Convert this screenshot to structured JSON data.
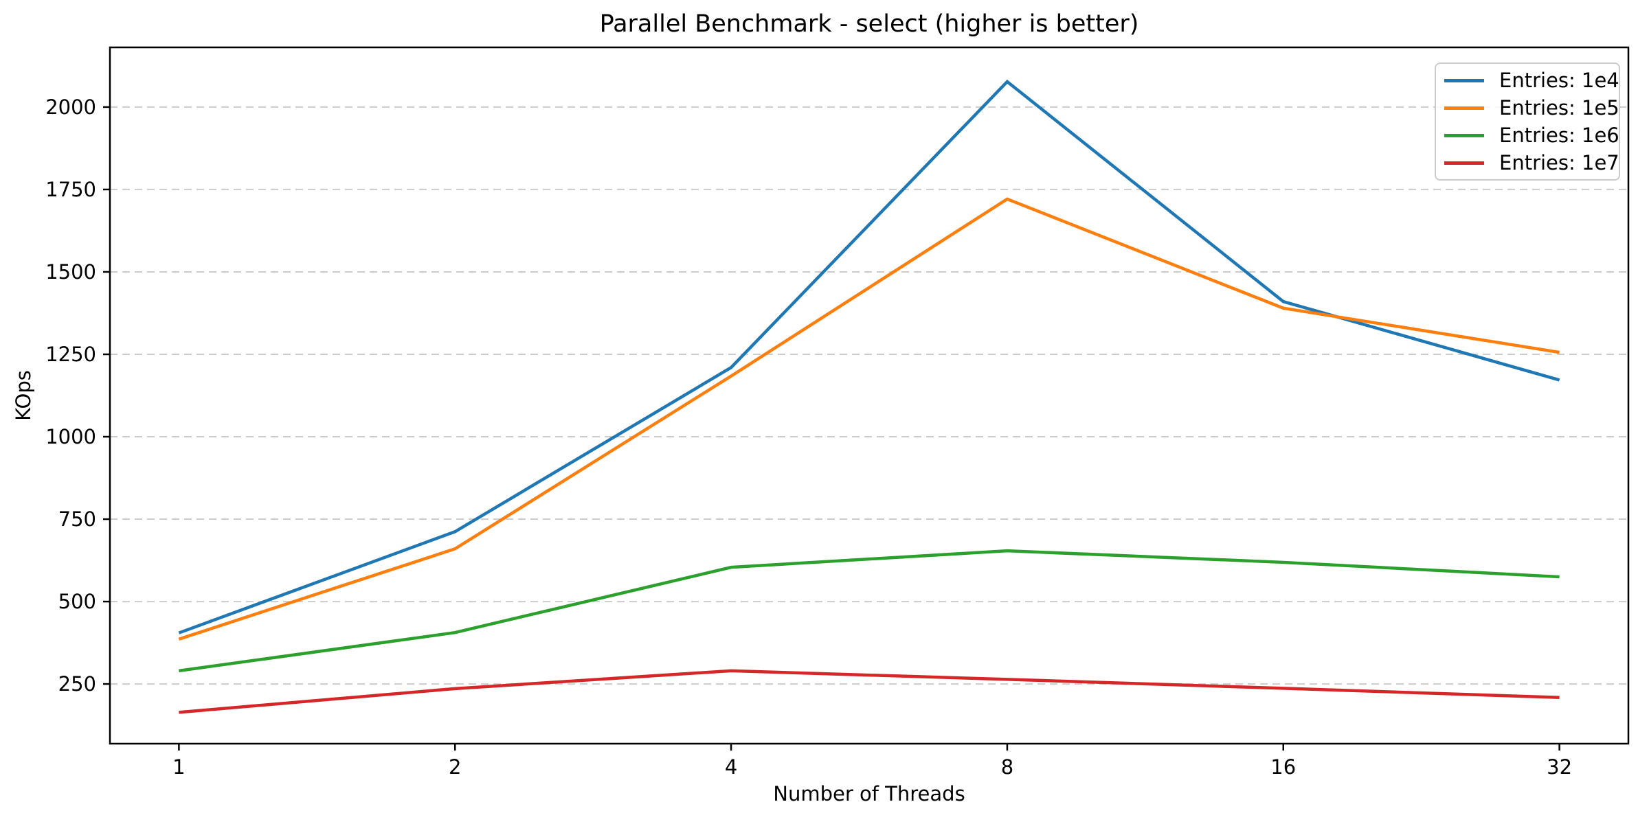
{
  "chart_data": {
    "type": "line",
    "title": "Parallel Benchmark - select (higher is better)",
    "xlabel": "Number of Threads",
    "ylabel": "KOps",
    "x": [
      1,
      2,
      4,
      8,
      16,
      32
    ],
    "x_scale": "log2",
    "xtick_labels": [
      "1",
      "2",
      "4",
      "8",
      "16",
      "32"
    ],
    "yticks": [
      250,
      500,
      750,
      1000,
      1250,
      1500,
      1750,
      2000
    ],
    "xlim": [
      0.841,
      38.05
    ],
    "ylim": [
      69,
      2181
    ],
    "grid": "horizontal-dashed",
    "legend_position": "upper right",
    "series": [
      {
        "name": "Entries: 1e4",
        "color": "#1f77b4",
        "values": [
          405,
          712,
          1210,
          2077,
          1410,
          1172
        ]
      },
      {
        "name": "Entries: 1e5",
        "color": "#ff7f0e",
        "values": [
          386,
          660,
          1184,
          1721,
          1390,
          1256
        ]
      },
      {
        "name": "Entries: 1e6",
        "color": "#2ca02c",
        "values": [
          290,
          406,
          604,
          654,
          619,
          575
        ]
      },
      {
        "name": "Entries: 1e7",
        "color": "#d62728",
        "values": [
          164,
          236,
          290,
          264,
          237,
          209
        ]
      }
    ]
  },
  "colors": {
    "grid": "#cccccc",
    "axis": "#000000",
    "text": "#000000",
    "legend_border": "#cccccc"
  }
}
